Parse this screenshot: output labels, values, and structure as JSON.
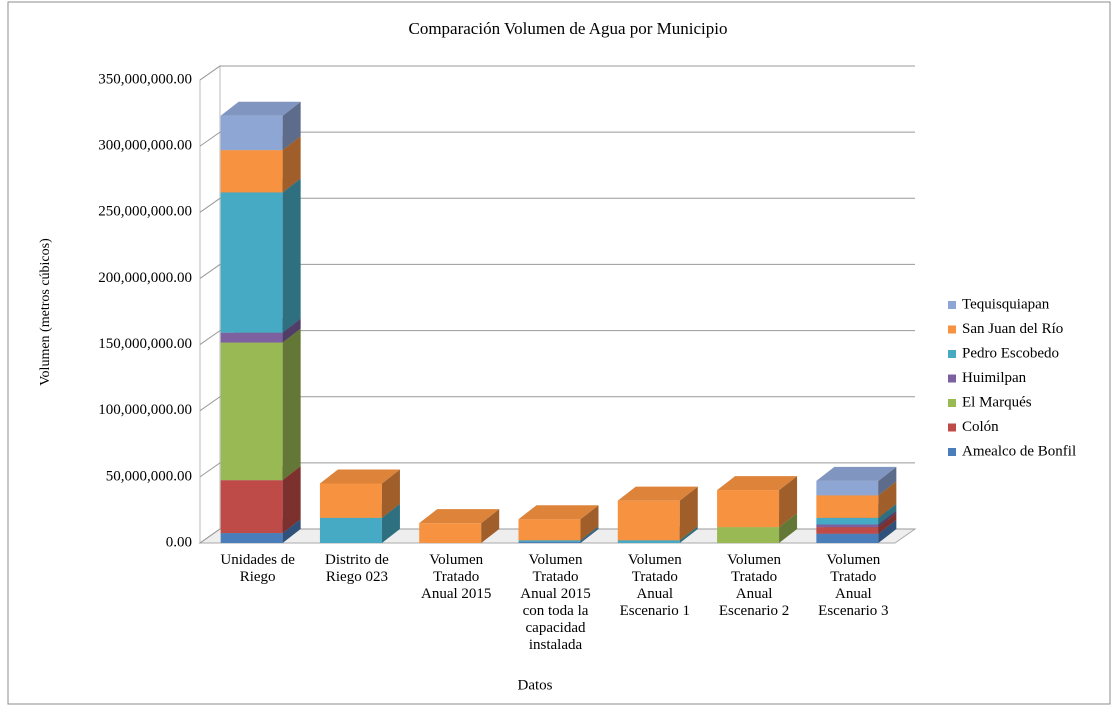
{
  "chart_data": {
    "type": "bar3d_stacked",
    "title": "Comparación Volumen de Agua por Municipio",
    "x_label": "Datos",
    "y_label": "Volumen (metros cúbicos)",
    "categories": [
      "Unidades de Riego",
      "Distrito de Riego 023",
      "Volumen Tratado Anual 2015",
      "Volumen Tratado Anual 2015 con toda la capacidad instalada",
      "Volumen Tratado Anual Escenario 1",
      "Volumen Tratado Anual Escenario 2",
      "Volumen Tratado Anual Escenario 3"
    ],
    "series": [
      {
        "name": "Amealco de Bonfil",
        "color": "#4a7ebb",
        "values": [
          7500000,
          0,
          0,
          1000000,
          0,
          0,
          7000000
        ]
      },
      {
        "name": "Colón",
        "color": "#be4b48",
        "values": [
          40000000,
          0,
          0,
          0,
          0,
          0,
          5000000
        ]
      },
      {
        "name": "El Marqués",
        "color": "#98b954",
        "values": [
          104000000,
          0,
          0,
          0,
          0,
          12000000,
          0
        ]
      },
      {
        "name": "Huimilpan",
        "color": "#7d60a0",
        "values": [
          7500000,
          0,
          0,
          0,
          0,
          0,
          2000000
        ]
      },
      {
        "name": "Pedro Escobedo",
        "color": "#46aac5",
        "values": [
          106000000,
          19000000,
          0,
          1000000,
          2000000,
          0,
          5000000
        ]
      },
      {
        "name": "San Juan del Río",
        "color": "#f69240",
        "values": [
          32000000,
          26000000,
          15000000,
          16000000,
          30000000,
          28000000,
          17000000
        ]
      },
      {
        "name": "Tequisquiapan",
        "color": "#8ea6d4",
        "values": [
          26000000,
          0,
          0,
          0,
          0,
          0,
          11000000
        ]
      }
    ],
    "ylim": [
      0,
      350000000
    ],
    "yticks": [
      {
        "value": 0,
        "label": "0.00"
      },
      {
        "value": 50000000,
        "label": "50,000,000.00"
      },
      {
        "value": 100000000,
        "label": "100,000,000.00"
      },
      {
        "value": 150000000,
        "label": "150,000,000.00"
      },
      {
        "value": 200000000,
        "label": "200,000,000.00"
      },
      {
        "value": 250000000,
        "label": "250,000,000.00"
      },
      {
        "value": 300000000,
        "label": "300,000,000.00"
      },
      {
        "value": 350000000,
        "label": "350,000,000.00"
      }
    ],
    "grid": true,
    "legend": "right"
  }
}
